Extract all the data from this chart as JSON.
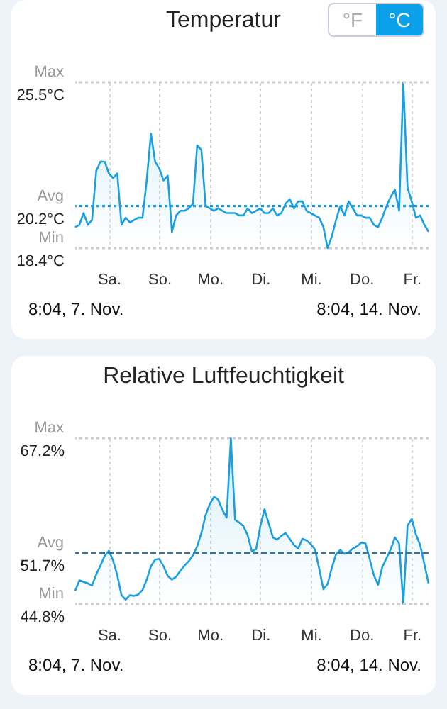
{
  "chart_data": [
    {
      "type": "area",
      "title": "Temperatur",
      "annotations": [
        "8:04,  7. Nov.",
        "8:04,  14. Nov.",
        "°F",
        "°C"
      ],
      "categories": [
        null,
        null,
        null,
        null,
        null,
        null,
        null,
        null,
        "Sa.",
        null,
        null,
        null,
        null,
        null,
        null,
        null,
        null,
        null,
        null,
        null,
        "So.",
        null,
        null,
        null,
        null,
        null,
        null,
        null,
        null,
        null,
        null,
        null,
        "Mo.",
        null,
        null,
        null,
        null,
        null,
        null,
        null,
        null,
        null,
        null,
        null,
        "Di.",
        null,
        null,
        null,
        null,
        null,
        null,
        null,
        null,
        null,
        null,
        null,
        "Mi.",
        null,
        null,
        null,
        null,
        null,
        null,
        null,
        null,
        null,
        null,
        null,
        "Do.",
        null,
        null,
        null,
        null,
        null,
        null,
        null,
        null,
        null,
        null,
        null,
        "Fr.",
        null,
        null,
        null,
        null
      ],
      "ylim": [
        18.4,
        25.5
      ],
      "yticks": [
        {
          "value": 18.4,
          "label": "18.4°C"
        },
        {
          "value": 20.2,
          "label": "20.2°C"
        },
        {
          "value": 25.5,
          "label": "25.5°C"
        }
      ],
      "grid": "x",
      "ref_lines": [
        {
          "axis": "y",
          "value": 25.5,
          "label": "Max",
          "color": "#cccccc",
          "line_style": "dotted"
        },
        {
          "axis": "y",
          "value": 20.2,
          "label": "Avg",
          "color": "#1a9fe0",
          "line_style": "dotted"
        },
        {
          "axis": "y",
          "value": 18.4,
          "label": "Min",
          "color": "#cccccc",
          "line_style": "dotted"
        }
      ],
      "series": [
        {
          "color": "#1a9fe0",
          "values": [
            19.3,
            19.4,
            19.9,
            19.4,
            19.6,
            21.7,
            22.1,
            22.1,
            21.6,
            21.4,
            21.6,
            19.4,
            19.7,
            19.5,
            19.6,
            19.7,
            19.7,
            21.3,
            23.3,
            22.1,
            21.8,
            21.3,
            21.5,
            19.1,
            19.8,
            20.0,
            20.0,
            20.1,
            20.3,
            22.8,
            22.6,
            20.2,
            20.1,
            20.0,
            20.1,
            20.0,
            19.9,
            19.9,
            19.9,
            19.8,
            19.8,
            20.1,
            19.9,
            20.0,
            20.1,
            19.9,
            19.9,
            20.1,
            19.8,
            19.9,
            20.3,
            20.5,
            20.1,
            20.4,
            20.4,
            20.0,
            19.9,
            19.8,
            19.7,
            19.3,
            18.4,
            18.9,
            19.6,
            20.2,
            19.8,
            20.4,
            20.1,
            19.8,
            19.8,
            19.7,
            19.7,
            19.4,
            19.3,
            19.7,
            20.2,
            20.6,
            20.9,
            20.0,
            25.5,
            21.0,
            20.4,
            19.7,
            19.8,
            19.4,
            19.1
          ]
        }
      ]
    },
    {
      "type": "area",
      "title": "Relative Luftfeuchtigkeit",
      "annotations": [
        "8:04,  7. Nov.",
        "8:04,  14. Nov."
      ],
      "categories": [
        null,
        null,
        null,
        null,
        null,
        null,
        null,
        null,
        "Sa.",
        null,
        null,
        null,
        null,
        null,
        null,
        null,
        null,
        null,
        null,
        null,
        "So.",
        null,
        null,
        null,
        null,
        null,
        null,
        null,
        null,
        null,
        null,
        null,
        "Mo.",
        null,
        null,
        null,
        null,
        null,
        null,
        null,
        null,
        null,
        null,
        null,
        "Di.",
        null,
        null,
        null,
        null,
        null,
        null,
        null,
        null,
        null,
        null,
        null,
        "Mi.",
        null,
        null,
        null,
        null,
        null,
        null,
        null,
        null,
        null,
        null,
        null,
        "Do.",
        null,
        null,
        null,
        null,
        null,
        null,
        null,
        null,
        null,
        null,
        null,
        "Fr.",
        null,
        null,
        null,
        null
      ],
      "ylim": [
        44.8,
        67.2
      ],
      "yticks": [
        {
          "value": 44.8,
          "label": "44.8%"
        },
        {
          "value": 51.7,
          "label": "51.7%"
        },
        {
          "value": 67.2,
          "label": "67.2%"
        }
      ],
      "grid": "x",
      "ref_lines": [
        {
          "axis": "y",
          "value": 67.2,
          "label": "Max",
          "color": "#cccccc",
          "line_style": "dotted"
        },
        {
          "axis": "y",
          "value": 51.7,
          "label": "Avg",
          "color": "#2b78a8",
          "line_style": "dashed"
        },
        {
          "axis": "y",
          "value": 44.8,
          "label": "Min",
          "color": "#cccccc",
          "line_style": "dotted"
        }
      ],
      "series": [
        {
          "color": "#1a9fe0",
          "values": [
            46.6,
            48.0,
            47.8,
            47.6,
            47.3,
            48.8,
            50.0,
            51.3,
            52.0,
            50.7,
            48.7,
            46.0,
            45.4,
            46.0,
            45.9,
            46.1,
            46.7,
            48.1,
            49.9,
            50.8,
            50.9,
            49.9,
            48.6,
            48.1,
            48.5,
            49.3,
            50.0,
            50.6,
            51.4,
            52.6,
            54.4,
            56.8,
            58.3,
            59.3,
            58.9,
            57.5,
            56.5,
            67.2,
            56.2,
            55.8,
            55.3,
            54.1,
            51.9,
            52.2,
            55.3,
            57.6,
            55.7,
            53.8,
            53.5,
            54.0,
            54.4,
            53.6,
            52.8,
            52.3,
            53.6,
            53.4,
            52.9,
            52.2,
            49.6,
            46.8,
            47.5,
            49.7,
            51.5,
            52.1,
            51.6,
            51.8,
            52.3,
            52.6,
            53.1,
            53.0,
            50.9,
            48.7,
            47.4,
            49.8,
            51.0,
            52.2,
            53.8,
            53.0,
            44.8,
            55.4,
            56.3,
            54.2,
            52.8,
            50.2,
            47.6
          ]
        }
      ]
    }
  ]
}
